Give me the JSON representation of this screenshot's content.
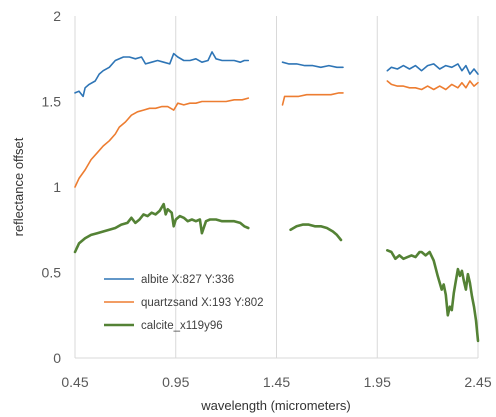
{
  "chart_data": {
    "type": "line",
    "title": "",
    "xlabel": "wavelength (micrometers)",
    "ylabel": "reflectance offset",
    "xlim": [
      0.45,
      2.45
    ],
    "ylim": [
      0,
      2
    ],
    "xticks": [
      0.45,
      0.95,
      1.45,
      1.95,
      2.45
    ],
    "xtick_labels": [
      "0.45",
      "0.95",
      "1.45",
      "1.95",
      "2.45"
    ],
    "yticks": [
      0,
      0.5,
      1,
      1.5,
      2
    ],
    "ytick_labels": [
      "0",
      "0.5",
      "1",
      "1.5",
      "2"
    ],
    "grid": "vertical",
    "legend": "bottom-left",
    "series": [
      {
        "name": "albite X:827 Y:336",
        "color": "#2e75b6",
        "width": 1.6,
        "segments": [
          [
            [
              0.45,
              1.55
            ],
            [
              0.47,
              1.56
            ],
            [
              0.49,
              1.53
            ],
            [
              0.5,
              1.58
            ],
            [
              0.52,
              1.6
            ],
            [
              0.55,
              1.62
            ],
            [
              0.57,
              1.66
            ],
            [
              0.59,
              1.68
            ],
            [
              0.62,
              1.7
            ],
            [
              0.65,
              1.74
            ],
            [
              0.69,
              1.76
            ],
            [
              0.72,
              1.76
            ],
            [
              0.75,
              1.75
            ],
            [
              0.78,
              1.76
            ],
            [
              0.8,
              1.72
            ],
            [
              0.83,
              1.73
            ],
            [
              0.86,
              1.74
            ],
            [
              0.89,
              1.73
            ],
            [
              0.92,
              1.72
            ],
            [
              0.94,
              1.78
            ],
            [
              0.96,
              1.76
            ],
            [
              0.99,
              1.74
            ],
            [
              1.02,
              1.74
            ],
            [
              1.05,
              1.75
            ],
            [
              1.08,
              1.73
            ],
            [
              1.11,
              1.74
            ],
            [
              1.13,
              1.79
            ],
            [
              1.15,
              1.75
            ],
            [
              1.18,
              1.74
            ],
            [
              1.21,
              1.74
            ],
            [
              1.24,
              1.74
            ],
            [
              1.27,
              1.73
            ],
            [
              1.29,
              1.74
            ],
            [
              1.31,
              1.74
            ]
          ],
          [
            [
              1.48,
              1.73
            ],
            [
              1.51,
              1.72
            ],
            [
              1.55,
              1.72
            ],
            [
              1.59,
              1.71
            ],
            [
              1.63,
              1.71
            ],
            [
              1.67,
              1.7
            ],
            [
              1.71,
              1.71
            ],
            [
              1.75,
              1.7
            ],
            [
              1.78,
              1.7
            ]
          ],
          [
            [
              2.0,
              1.68
            ],
            [
              2.02,
              1.7
            ],
            [
              2.05,
              1.69
            ],
            [
              2.08,
              1.71
            ],
            [
              2.11,
              1.69
            ],
            [
              2.14,
              1.71
            ],
            [
              2.17,
              1.68
            ],
            [
              2.2,
              1.71
            ],
            [
              2.23,
              1.72
            ],
            [
              2.26,
              1.69
            ],
            [
              2.29,
              1.71
            ],
            [
              2.32,
              1.7
            ],
            [
              2.35,
              1.72
            ],
            [
              2.37,
              1.68
            ],
            [
              2.39,
              1.71
            ],
            [
              2.41,
              1.66
            ],
            [
              2.43,
              1.69
            ],
            [
              2.45,
              1.66
            ]
          ]
        ]
      },
      {
        "name": "quartzsand X:193 Y:802",
        "color": "#ed7d31",
        "width": 1.6,
        "segments": [
          [
            [
              0.45,
              1.0
            ],
            [
              0.47,
              1.05
            ],
            [
              0.5,
              1.1
            ],
            [
              0.53,
              1.16
            ],
            [
              0.56,
              1.2
            ],
            [
              0.59,
              1.24
            ],
            [
              0.62,
              1.27
            ],
            [
              0.65,
              1.31
            ],
            [
              0.67,
              1.35
            ],
            [
              0.7,
              1.38
            ],
            [
              0.73,
              1.42
            ],
            [
              0.76,
              1.44
            ],
            [
              0.79,
              1.45
            ],
            [
              0.82,
              1.46
            ],
            [
              0.85,
              1.46
            ],
            [
              0.88,
              1.47
            ],
            [
              0.91,
              1.47
            ],
            [
              0.94,
              1.45
            ],
            [
              0.96,
              1.49
            ],
            [
              0.99,
              1.48
            ],
            [
              1.02,
              1.49
            ],
            [
              1.05,
              1.49
            ],
            [
              1.08,
              1.5
            ],
            [
              1.12,
              1.5
            ],
            [
              1.16,
              1.5
            ],
            [
              1.2,
              1.5
            ],
            [
              1.24,
              1.51
            ],
            [
              1.28,
              1.51
            ],
            [
              1.31,
              1.52
            ]
          ],
          [
            [
              1.48,
              1.48
            ],
            [
              1.49,
              1.53
            ],
            [
              1.52,
              1.53
            ],
            [
              1.56,
              1.53
            ],
            [
              1.6,
              1.54
            ],
            [
              1.64,
              1.54
            ],
            [
              1.68,
              1.54
            ],
            [
              1.72,
              1.54
            ],
            [
              1.76,
              1.55
            ],
            [
              1.78,
              1.55
            ]
          ],
          [
            [
              2.0,
              1.62
            ],
            [
              2.02,
              1.6
            ],
            [
              2.05,
              1.59
            ],
            [
              2.08,
              1.59
            ],
            [
              2.11,
              1.58
            ],
            [
              2.14,
              1.58
            ],
            [
              2.17,
              1.57
            ],
            [
              2.2,
              1.59
            ],
            [
              2.23,
              1.57
            ],
            [
              2.26,
              1.59
            ],
            [
              2.29,
              1.57
            ],
            [
              2.32,
              1.6
            ],
            [
              2.35,
              1.58
            ],
            [
              2.37,
              1.61
            ],
            [
              2.39,
              1.58
            ],
            [
              2.41,
              1.62
            ],
            [
              2.43,
              1.59
            ],
            [
              2.45,
              1.61
            ]
          ]
        ]
      },
      {
        "name": "calcite_x119y96",
        "color": "#548235",
        "width": 2.6,
        "segments": [
          [
            [
              0.45,
              0.62
            ],
            [
              0.47,
              0.67
            ],
            [
              0.5,
              0.7
            ],
            [
              0.53,
              0.72
            ],
            [
              0.56,
              0.73
            ],
            [
              0.59,
              0.74
            ],
            [
              0.62,
              0.75
            ],
            [
              0.65,
              0.76
            ],
            [
              0.68,
              0.78
            ],
            [
              0.71,
              0.79
            ],
            [
              0.73,
              0.82
            ],
            [
              0.75,
              0.79
            ],
            [
              0.77,
              0.81
            ],
            [
              0.79,
              0.84
            ],
            [
              0.81,
              0.83
            ],
            [
              0.83,
              0.85
            ],
            [
              0.85,
              0.84
            ],
            [
              0.87,
              0.86
            ],
            [
              0.89,
              0.9
            ],
            [
              0.9,
              0.84
            ],
            [
              0.91,
              0.87
            ],
            [
              0.93,
              0.85
            ],
            [
              0.94,
              0.77
            ],
            [
              0.95,
              0.81
            ],
            [
              0.97,
              0.83
            ],
            [
              0.99,
              0.82
            ],
            [
              1.01,
              0.8
            ],
            [
              1.03,
              0.81
            ],
            [
              1.05,
              0.8
            ],
            [
              1.07,
              0.81
            ],
            [
              1.08,
              0.73
            ],
            [
              1.1,
              0.8
            ],
            [
              1.12,
              0.81
            ],
            [
              1.15,
              0.81
            ],
            [
              1.18,
              0.8
            ],
            [
              1.21,
              0.8
            ],
            [
              1.24,
              0.8
            ],
            [
              1.27,
              0.79
            ],
            [
              1.29,
              0.77
            ],
            [
              1.31,
              0.76
            ]
          ],
          [
            [
              1.52,
              0.75
            ],
            [
              1.55,
              0.77
            ],
            [
              1.58,
              0.78
            ],
            [
              1.61,
              0.78
            ],
            [
              1.64,
              0.77
            ],
            [
              1.67,
              0.77
            ],
            [
              1.7,
              0.76
            ],
            [
              1.73,
              0.74
            ],
            [
              1.75,
              0.72
            ],
            [
              1.77,
              0.69
            ]
          ],
          [
            [
              2.0,
              0.63
            ],
            [
              2.02,
              0.62
            ],
            [
              2.04,
              0.58
            ],
            [
              2.06,
              0.6
            ],
            [
              2.08,
              0.58
            ],
            [
              2.1,
              0.59
            ],
            [
              2.12,
              0.6
            ],
            [
              2.14,
              0.59
            ],
            [
              2.16,
              0.62
            ],
            [
              2.17,
              0.62
            ],
            [
              2.19,
              0.6
            ],
            [
              2.21,
              0.62
            ],
            [
              2.23,
              0.57
            ],
            [
              2.25,
              0.48
            ],
            [
              2.27,
              0.4
            ],
            [
              2.28,
              0.43
            ],
            [
              2.29,
              0.37
            ],
            [
              2.3,
              0.25
            ],
            [
              2.31,
              0.3
            ],
            [
              2.32,
              0.28
            ],
            [
              2.33,
              0.38
            ],
            [
              2.34,
              0.45
            ],
            [
              2.35,
              0.52
            ],
            [
              2.36,
              0.48
            ],
            [
              2.37,
              0.51
            ],
            [
              2.38,
              0.45
            ],
            [
              2.39,
              0.4
            ],
            [
              2.4,
              0.49
            ],
            [
              2.41,
              0.44
            ],
            [
              2.42,
              0.36
            ],
            [
              2.43,
              0.3
            ],
            [
              2.44,
              0.22
            ],
            [
              2.45,
              0.1
            ]
          ]
        ]
      }
    ]
  }
}
